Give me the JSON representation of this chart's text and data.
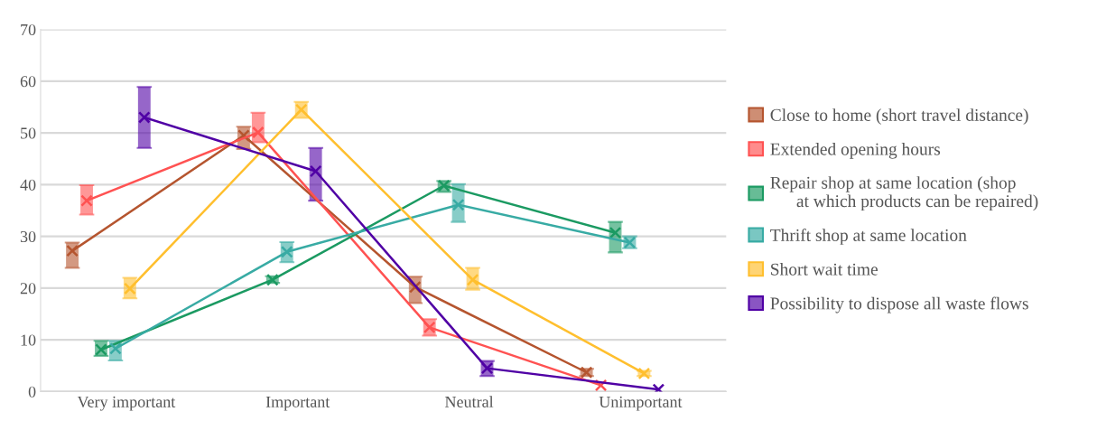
{
  "chart_data": {
    "type": "line",
    "categories": [
      "Very important",
      "Important",
      "Neutral",
      "Unimportant"
    ],
    "series": [
      {
        "name": "Close to home (short travel distance)",
        "color": "#b5552f",
        "values": [
          27.2,
          49.5,
          20.2,
          3.7
        ],
        "errors": [
          [
            23.9,
            28.8
          ],
          [
            46.9,
            51.2
          ],
          [
            17.1,
            22.2
          ],
          [
            3.0,
            4.4
          ]
        ]
      },
      {
        "name": "Extended opening hours",
        "color": "#ff5252",
        "values": [
          36.9,
          50.1,
          12.4,
          1.2
        ],
        "errors": [
          [
            34.2,
            39.9
          ],
          [
            48.2,
            53.9
          ],
          [
            10.8,
            14
          ],
          null
        ]
      },
      {
        "name": "Repair shop at same location (shop\n      at which products can be repaired)",
        "color": "#1b9a62",
        "values": [
          8.1,
          21.6,
          39.8,
          30.7
        ],
        "errors": [
          [
            6.9,
            9.8
          ],
          [
            21,
            22.3
          ],
          [
            38.6,
            40.7
          ],
          [
            26.9,
            32.8
          ]
        ]
      },
      {
        "name": "Thrift shop at same location",
        "color": "#38aba4",
        "values": [
          8.3,
          27.0,
          36.1,
          28.8
        ],
        "errors": [
          [
            6.0,
            9.8
          ],
          [
            25,
            28.9
          ],
          [
            32.8,
            40.1
          ],
          [
            27.7,
            30
          ]
        ]
      },
      {
        "name": "Short wait time",
        "color": "#ffbf2e",
        "values": [
          19.9,
          54.5,
          21.6,
          3.5
        ],
        "errors": [
          [
            18,
            22
          ],
          [
            52.9,
            56
          ],
          [
            19.7,
            23.9
          ],
          [
            3.0,
            4.0
          ]
        ]
      },
      {
        "name": "Possibility to dispose all waste flows",
        "color": "#5000a5",
        "values": [
          53.0,
          42.6,
          4.5,
          0.4
        ],
        "errors": [
          [
            47.1,
            58.9
          ],
          [
            36.9,
            47.1
          ],
          [
            3.0,
            5.9
          ],
          null
        ]
      }
    ],
    "ylim": [
      0,
      70
    ],
    "yticks": [
      0,
      10,
      20,
      30,
      40,
      50,
      60,
      70
    ],
    "grid": "y",
    "legend": "right",
    "marker": "cross",
    "line_style": "solid"
  }
}
